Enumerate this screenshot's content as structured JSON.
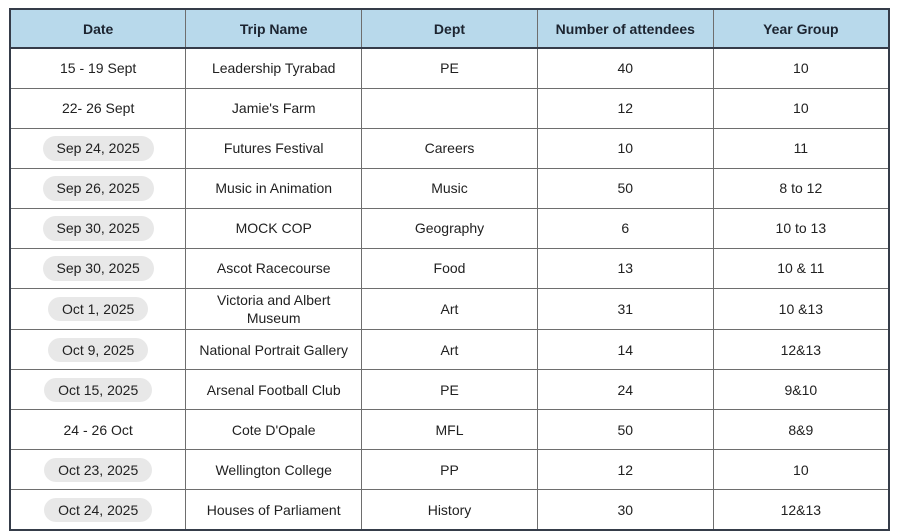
{
  "table": {
    "columns": [
      {
        "label": "Date"
      },
      {
        "label": "Trip Name"
      },
      {
        "label": "Dept"
      },
      {
        "label": "Number of attendees"
      },
      {
        "label": "Year Group"
      }
    ],
    "rows": [
      {
        "date": "15 - 19 Sept",
        "date_pill": false,
        "trip_name": "Leadership Tyrabad",
        "dept": "PE",
        "attendees": "40",
        "year_group": "10"
      },
      {
        "date": "22- 26 Sept",
        "date_pill": false,
        "trip_name": "Jamie's Farm",
        "dept": "",
        "attendees": "12",
        "year_group": "10"
      },
      {
        "date": "Sep 24, 2025",
        "date_pill": true,
        "trip_name": "Futures Festival",
        "dept": "Careers",
        "attendees": "10",
        "year_group": "11"
      },
      {
        "date": "Sep 26, 2025",
        "date_pill": true,
        "trip_name": "Music in Animation",
        "dept": "Music",
        "attendees": "50",
        "year_group": "8 to 12"
      },
      {
        "date": "Sep 30, 2025",
        "date_pill": true,
        "trip_name": "MOCK COP",
        "dept": "Geography",
        "attendees": "6",
        "year_group": "10 to 13"
      },
      {
        "date": "Sep 30, 2025",
        "date_pill": true,
        "trip_name": "Ascot Racecourse",
        "dept": "Food",
        "attendees": "13",
        "year_group": "10 & 11"
      },
      {
        "date": "Oct 1, 2025",
        "date_pill": true,
        "trip_name": "Victoria and Albert Museum",
        "dept": "Art",
        "attendees": "31",
        "year_group": "10 &13"
      },
      {
        "date": "Oct 9, 2025",
        "date_pill": true,
        "trip_name": "National Portrait Gallery",
        "dept": "Art",
        "attendees": "14",
        "year_group": "12&13"
      },
      {
        "date": "Oct 15, 2025",
        "date_pill": true,
        "trip_name": "Arsenal Football Club",
        "dept": "PE",
        "attendees": "24",
        "year_group": "9&10"
      },
      {
        "date": "24 - 26 Oct",
        "date_pill": false,
        "trip_name": "Cote D'Opale",
        "dept": "MFL",
        "attendees": "50",
        "year_group": "8&9"
      },
      {
        "date": "Oct 23, 2025",
        "date_pill": true,
        "trip_name": "Wellington College",
        "dept": "PP",
        "attendees": "12",
        "year_group": "10"
      },
      {
        "date": "Oct 24, 2025",
        "date_pill": true,
        "trip_name": "Houses of Parliament",
        "dept": "History",
        "attendees": "30",
        "year_group": "12&13"
      }
    ]
  },
  "colors": {
    "header_bg": "#b8d9eb",
    "header_text": "#1c2430",
    "pill_bg": "#e8e8e8",
    "border_inner": "#6e6e6e",
    "border_outer": "#353c49",
    "text": "#212121"
  }
}
